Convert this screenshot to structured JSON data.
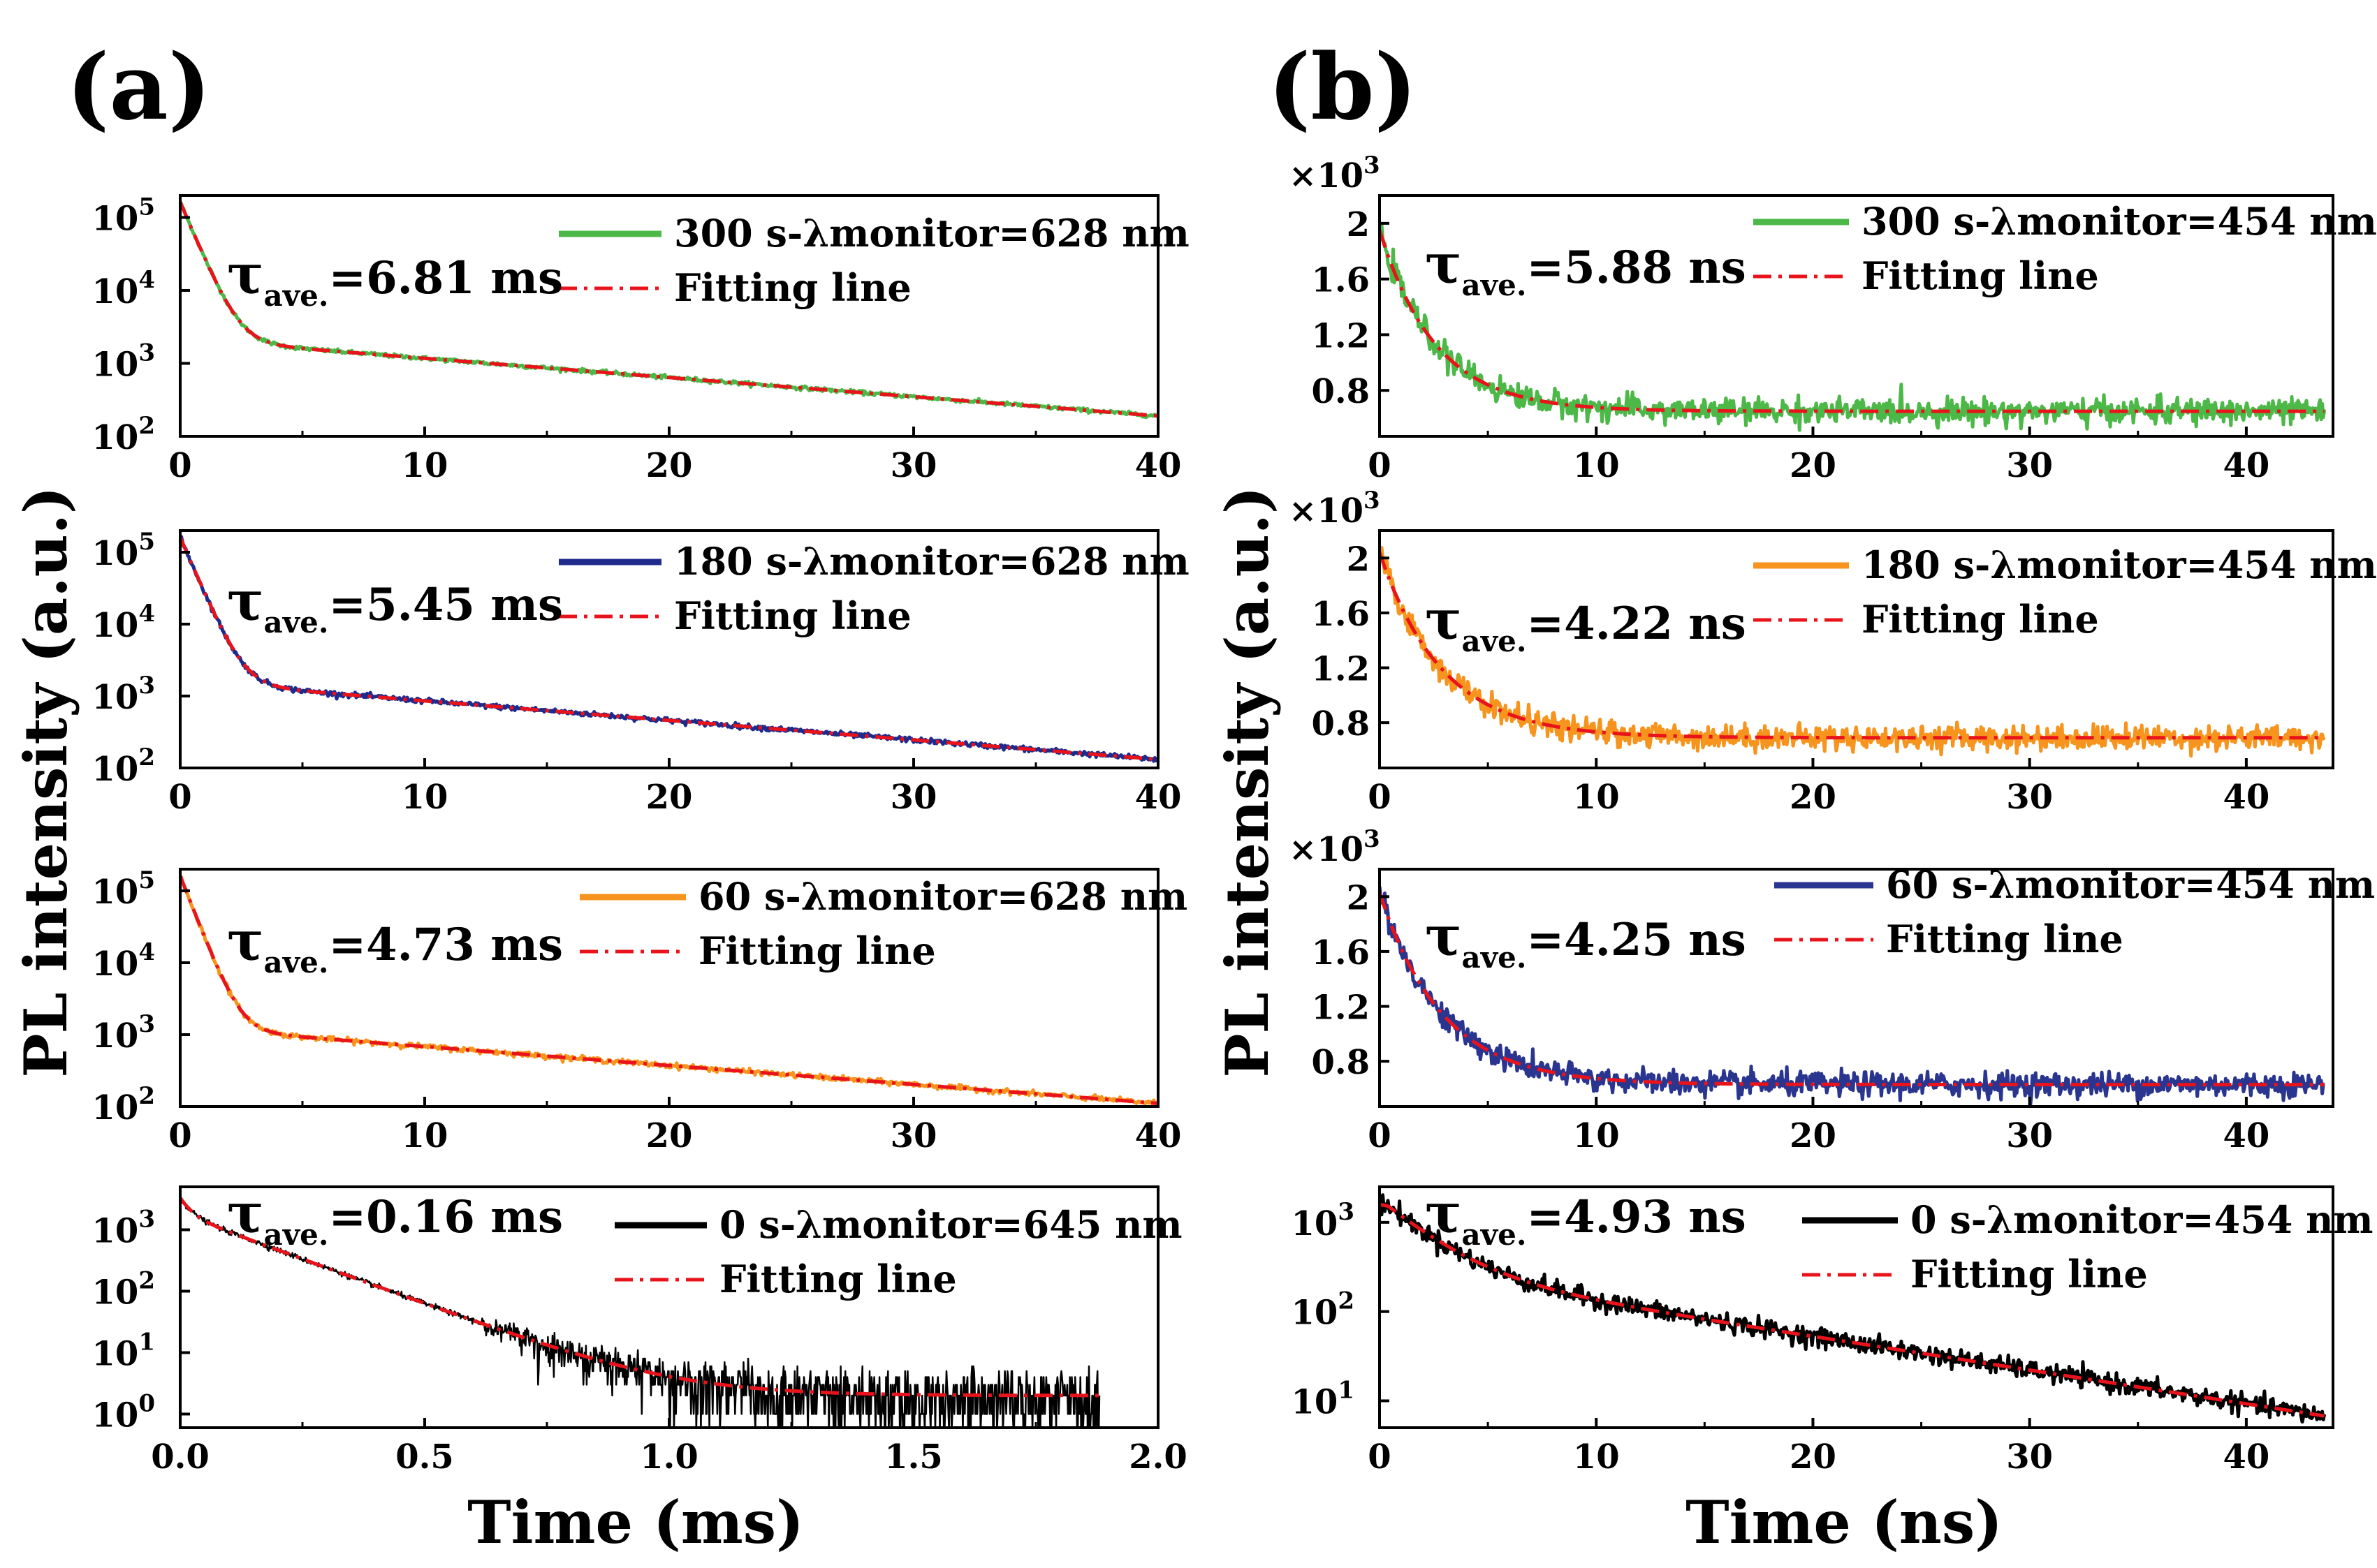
{
  "panel_labels": {
    "a": "(a)",
    "b": "(b)"
  },
  "axis_labels": {
    "a_y": "PL intensity (a.u.)",
    "b_y": "PL intensity (a.u.)",
    "a_x": "Time (ms)",
    "b_x": "Time  (ns)"
  },
  "chart_data": [
    {
      "id": "a1",
      "type": "line",
      "yscale": "log",
      "xlim": [
        0,
        40
      ],
      "ylim": [
        100,
        200000
      ],
      "xticks": [
        "0",
        "10",
        "20",
        "30",
        "40"
      ],
      "xtick_values": [
        0,
        10,
        20,
        30,
        40
      ],
      "yticks": [
        {
          "value": 100,
          "base": "10",
          "exp": "2"
        },
        {
          "value": 1000,
          "base": "10",
          "exp": "3"
        },
        {
          "value": 10000,
          "base": "10",
          "exp": "4"
        },
        {
          "value": 100000,
          "base": "10",
          "exp": "5"
        }
      ],
      "tau": "τ",
      "tau_sub": "ave.",
      "tau_value": "=6.81 ms",
      "legend": [
        {
          "label": "300 s-λmonitor=628 nm",
          "color": "#4cb847",
          "style": "solid"
        },
        {
          "label": "Fitting line",
          "color": "#e8131b",
          "style": "dashdot"
        }
      ],
      "series": [
        {
          "name": "300 s-λmonitor=628 nm",
          "color": "#4cb847",
          "noise": 0.03,
          "model": {
            "kind": "biexp",
            "A1": 160000,
            "t1": 0.55,
            "A2": 2150,
            "t2": 16.5,
            "C": 0
          },
          "t_end": 40
        },
        {
          "name": "Fitting line",
          "color": "#e8131b",
          "dash": "dashdot",
          "model": {
            "kind": "biexp",
            "A1": 160000,
            "t1": 0.55,
            "A2": 2150,
            "t2": 16.5,
            "C": 0
          },
          "t_end": 40
        }
      ]
    },
    {
      "id": "a2",
      "type": "line",
      "yscale": "log",
      "xlim": [
        0,
        40
      ],
      "ylim": [
        100,
        200000
      ],
      "xticks": [
        "0",
        "10",
        "20",
        "30",
        "40"
      ],
      "xtick_values": [
        0,
        10,
        20,
        30,
        40
      ],
      "yticks": [
        {
          "value": 100,
          "base": "10",
          "exp": "2"
        },
        {
          "value": 1000,
          "base": "10",
          "exp": "3"
        },
        {
          "value": 10000,
          "base": "10",
          "exp": "4"
        },
        {
          "value": 100000,
          "base": "10",
          "exp": "5"
        }
      ],
      "tau": "τ",
      "tau_sub": "ave.",
      "tau_value": "=5.45 ms",
      "legend": [
        {
          "label": "180 s-λmonitor=628 nm",
          "color": "#1e2b8c",
          "style": "solid"
        },
        {
          "label": "Fitting line",
          "color": "#e8131b",
          "style": "dashdot"
        }
      ],
      "series": [
        {
          "name": "180 s-λmonitor=628 nm",
          "color": "#1e2b8c",
          "noise": 0.04,
          "model": {
            "kind": "biexp",
            "A1": 160000,
            "t1": 0.55,
            "A2": 1600,
            "t2": 16.0,
            "C": 0
          },
          "t_end": 40
        },
        {
          "name": "Fitting line",
          "color": "#e8131b",
          "dash": "dashdot",
          "model": {
            "kind": "biexp",
            "A1": 160000,
            "t1": 0.55,
            "A2": 1600,
            "t2": 16.0,
            "C": 0
          },
          "t_end": 40
        }
      ]
    },
    {
      "id": "a3",
      "type": "line",
      "yscale": "log",
      "xlim": [
        0,
        40
      ],
      "ylim": [
        100,
        200000
      ],
      "xticks": [
        "0",
        "10",
        "20",
        "30",
        "40"
      ],
      "xtick_values": [
        0,
        10,
        20,
        30,
        40
      ],
      "yticks": [
        {
          "value": 100,
          "base": "10",
          "exp": "2"
        },
        {
          "value": 1000,
          "base": "10",
          "exp": "3"
        },
        {
          "value": 10000,
          "base": "10",
          "exp": "4"
        },
        {
          "value": 100000,
          "base": "10",
          "exp": "5"
        }
      ],
      "tau": "τ",
      "tau_sub": "ave.",
      "tau_value": "=4.73 ms",
      "legend": [
        {
          "label": "60 s-λmonitor=628 nm",
          "color": "#f7941d",
          "style": "solid"
        },
        {
          "label": "Fitting line",
          "color": "#e8131b",
          "style": "dashdot"
        }
      ],
      "series": [
        {
          "name": "60 s-λmonitor=628 nm",
          "color": "#f7941d",
          "noise": 0.04,
          "model": {
            "kind": "biexp",
            "A1": 160000,
            "t1": 0.5,
            "A2": 1250,
            "t2": 16.5,
            "C": 0
          },
          "t_end": 40
        },
        {
          "name": "Fitting line",
          "color": "#e8131b",
          "dash": "dashdot",
          "model": {
            "kind": "biexp",
            "A1": 160000,
            "t1": 0.5,
            "A2": 1250,
            "t2": 16.5,
            "C": 0
          },
          "t_end": 40
        }
      ]
    },
    {
      "id": "a4",
      "type": "line",
      "yscale": "log",
      "xlim": [
        0,
        2.0
      ],
      "ylim": [
        0.6,
        5000
      ],
      "xticks": [
        "0.0",
        "0.5",
        "1.0",
        "1.5",
        "2.0"
      ],
      "xtick_values": [
        0,
        0.5,
        1.0,
        1.5,
        2.0
      ],
      "yticks": [
        {
          "value": 1,
          "base": "10",
          "exp": "0"
        },
        {
          "value": 10,
          "base": "10",
          "exp": "1"
        },
        {
          "value": 100,
          "base": "10",
          "exp": "2"
        },
        {
          "value": 1000,
          "base": "10",
          "exp": "3"
        }
      ],
      "tau": "τ",
      "tau_sub": "ave.",
      "tau_value": "=0.16 ms",
      "legend": [
        {
          "label": "0 s-λmonitor=645 nm",
          "color": "#000000",
          "style": "solid"
        },
        {
          "label": "Fitting line",
          "color": "#e8131b",
          "style": "dashdot"
        }
      ],
      "series": [
        {
          "name": "0 s-λmonitor=645 nm",
          "color": "#000000",
          "noise": "poisson",
          "model": {
            "kind": "biexp",
            "A1": 1500,
            "t1": 0.02,
            "A2": 1800,
            "t2": 0.148,
            "C": 2
          },
          "t_end": 1.88
        },
        {
          "name": "Fitting line",
          "color": "#e8131b",
          "dash": "dashdot",
          "model": {
            "kind": "biexp",
            "A1": 1500,
            "t1": 0.02,
            "A2": 1800,
            "t2": 0.148,
            "C": 2
          },
          "t_end": 1.88
        }
      ]
    },
    {
      "id": "b1",
      "type": "line",
      "yscale": "linear",
      "xlim": [
        0,
        44
      ],
      "ylim": [
        0.47,
        2.2
      ],
      "xticks": [
        "0",
        "10",
        "20",
        "30",
        "40"
      ],
      "xtick_values": [
        0,
        10,
        20,
        30,
        40
      ],
      "yticks": [
        {
          "value": 0.8,
          "label": "0.8"
        },
        {
          "value": 1.2,
          "label": "1.2"
        },
        {
          "value": 1.6,
          "label": "1.6"
        },
        {
          "value": 2.0,
          "label": "2"
        }
      ],
      "multiplier": {
        "base": "×10",
        "exp": "3"
      },
      "tau": "τ",
      "tau_sub": "ave.",
      "tau_value": "=5.88 ns",
      "legend": [
        {
          "label": "300 s-λmonitor=454 nm",
          "color": "#4cb847",
          "style": "solid"
        },
        {
          "label": "Fitting line",
          "color": "#e8131b",
          "style": "dashdot"
        }
      ],
      "series": [
        {
          "name": "300 s-λmonitor=454 nm",
          "color": "#4cb847",
          "noise": 0.045,
          "model": {
            "kind": "exp",
            "A": 1.3,
            "t1": 2.6,
            "C": 0.65
          },
          "t_end": 43.6
        },
        {
          "name": "Fitting line",
          "color": "#e8131b",
          "dash": "dashdot",
          "model": {
            "kind": "exp",
            "A": 1.3,
            "t1": 2.6,
            "C": 0.65
          },
          "t_end": 43.6
        }
      ]
    },
    {
      "id": "b2",
      "type": "line",
      "yscale": "linear",
      "xlim": [
        0,
        44
      ],
      "ylim": [
        0.47,
        2.2
      ],
      "xticks": [
        "0",
        "10",
        "20",
        "30",
        "40"
      ],
      "xtick_values": [
        0,
        10,
        20,
        30,
        40
      ],
      "yticks": [
        {
          "value": 0.8,
          "label": "0.8"
        },
        {
          "value": 1.2,
          "label": "1.2"
        },
        {
          "value": 1.6,
          "label": "1.6"
        },
        {
          "value": 2.0,
          "label": "2"
        }
      ],
      "multiplier": {
        "base": "×10",
        "exp": "3"
      },
      "tau": "τ",
      "tau_sub": "ave.",
      "tau_value": "=4.22 ns",
      "legend": [
        {
          "label": "180 s-λmonitor=454 nm",
          "color": "#f7941d",
          "style": "solid"
        },
        {
          "label": "Fitting line",
          "color": "#e8131b",
          "style": "dashdot"
        }
      ],
      "series": [
        {
          "name": "180 s-λmonitor=454 nm",
          "color": "#f7941d",
          "noise": 0.045,
          "model": {
            "kind": "exp",
            "A": 1.35,
            "t1": 2.9,
            "C": 0.69
          },
          "t_end": 43.6
        },
        {
          "name": "Fitting line",
          "color": "#e8131b",
          "dash": "dashdot",
          "model": {
            "kind": "exp",
            "A": 1.35,
            "t1": 2.9,
            "C": 0.69
          },
          "t_end": 43.6
        }
      ]
    },
    {
      "id": "b3",
      "type": "line",
      "yscale": "linear",
      "xlim": [
        0,
        44
      ],
      "ylim": [
        0.47,
        2.2
      ],
      "xticks": [
        "0",
        "10",
        "20",
        "30",
        "40"
      ],
      "xtick_values": [
        0,
        10,
        20,
        30,
        40
      ],
      "yticks": [
        {
          "value": 0.8,
          "label": "0.8"
        },
        {
          "value": 1.2,
          "label": "1.2"
        },
        {
          "value": 1.6,
          "label": "1.6"
        },
        {
          "value": 2.0,
          "label": "2"
        }
      ],
      "multiplier": {
        "base": "×10",
        "exp": "3"
      },
      "tau": "τ",
      "tau_sub": "ave.",
      "tau_value": "=4.25 ns",
      "legend": [
        {
          "label": "60 s-λmonitor=454 nm",
          "color": "#2a3590",
          "style": "solid"
        },
        {
          "label": "Fitting line",
          "color": "#e8131b",
          "style": "dashdot"
        }
      ],
      "series": [
        {
          "name": "60 s-λmonitor=454 nm",
          "color": "#2a3590",
          "noise": 0.045,
          "model": {
            "kind": "exp",
            "A": 1.4,
            "t1": 2.9,
            "C": 0.63
          },
          "t_end": 43.6
        },
        {
          "name": "Fitting line",
          "color": "#e8131b",
          "dash": "dashdot",
          "model": {
            "kind": "exp",
            "A": 1.4,
            "t1": 2.9,
            "C": 0.63
          },
          "t_end": 43.6
        }
      ]
    },
    {
      "id": "b4",
      "type": "line",
      "yscale": "log",
      "xlim": [
        0,
        44
      ],
      "ylim": [
        5,
        2500
      ],
      "xticks": [
        "0",
        "10",
        "20",
        "30",
        "40"
      ],
      "xtick_values": [
        0,
        10,
        20,
        30,
        40
      ],
      "yticks": [
        {
          "value": 10,
          "base": "10",
          "exp": "1"
        },
        {
          "value": 100,
          "base": "10",
          "exp": "2"
        },
        {
          "value": 1000,
          "base": "10",
          "exp": "3"
        }
      ],
      "tau": "τ",
      "tau_sub": "ave.",
      "tau_value": "=4.93 ns",
      "legend": [
        {
          "label": "0 s-λmonitor=454 nm",
          "color": "#000000",
          "style": "solid"
        },
        {
          "label": "Fitting line",
          "color": "#e8131b",
          "style": "dashdot"
        }
      ],
      "series": [
        {
          "name": "0 s-λmonitor=454 nm",
          "color": "#000000",
          "noise": 0.12,
          "model": {
            "kind": "biexp",
            "A1": 1500,
            "t1": 2.0,
            "A2": 300,
            "t2": 11.5,
            "C": 0
          },
          "t_peak": 0.4,
          "t_end": 43.6
        },
        {
          "name": "Fitting line",
          "color": "#e8131b",
          "dash": "dashdot",
          "model": {
            "kind": "biexp",
            "A1": 1500,
            "t1": 2.0,
            "A2": 300,
            "t2": 11.5,
            "C": 0
          },
          "t_peak": 0.4,
          "t_end": 43.6
        }
      ]
    }
  ]
}
